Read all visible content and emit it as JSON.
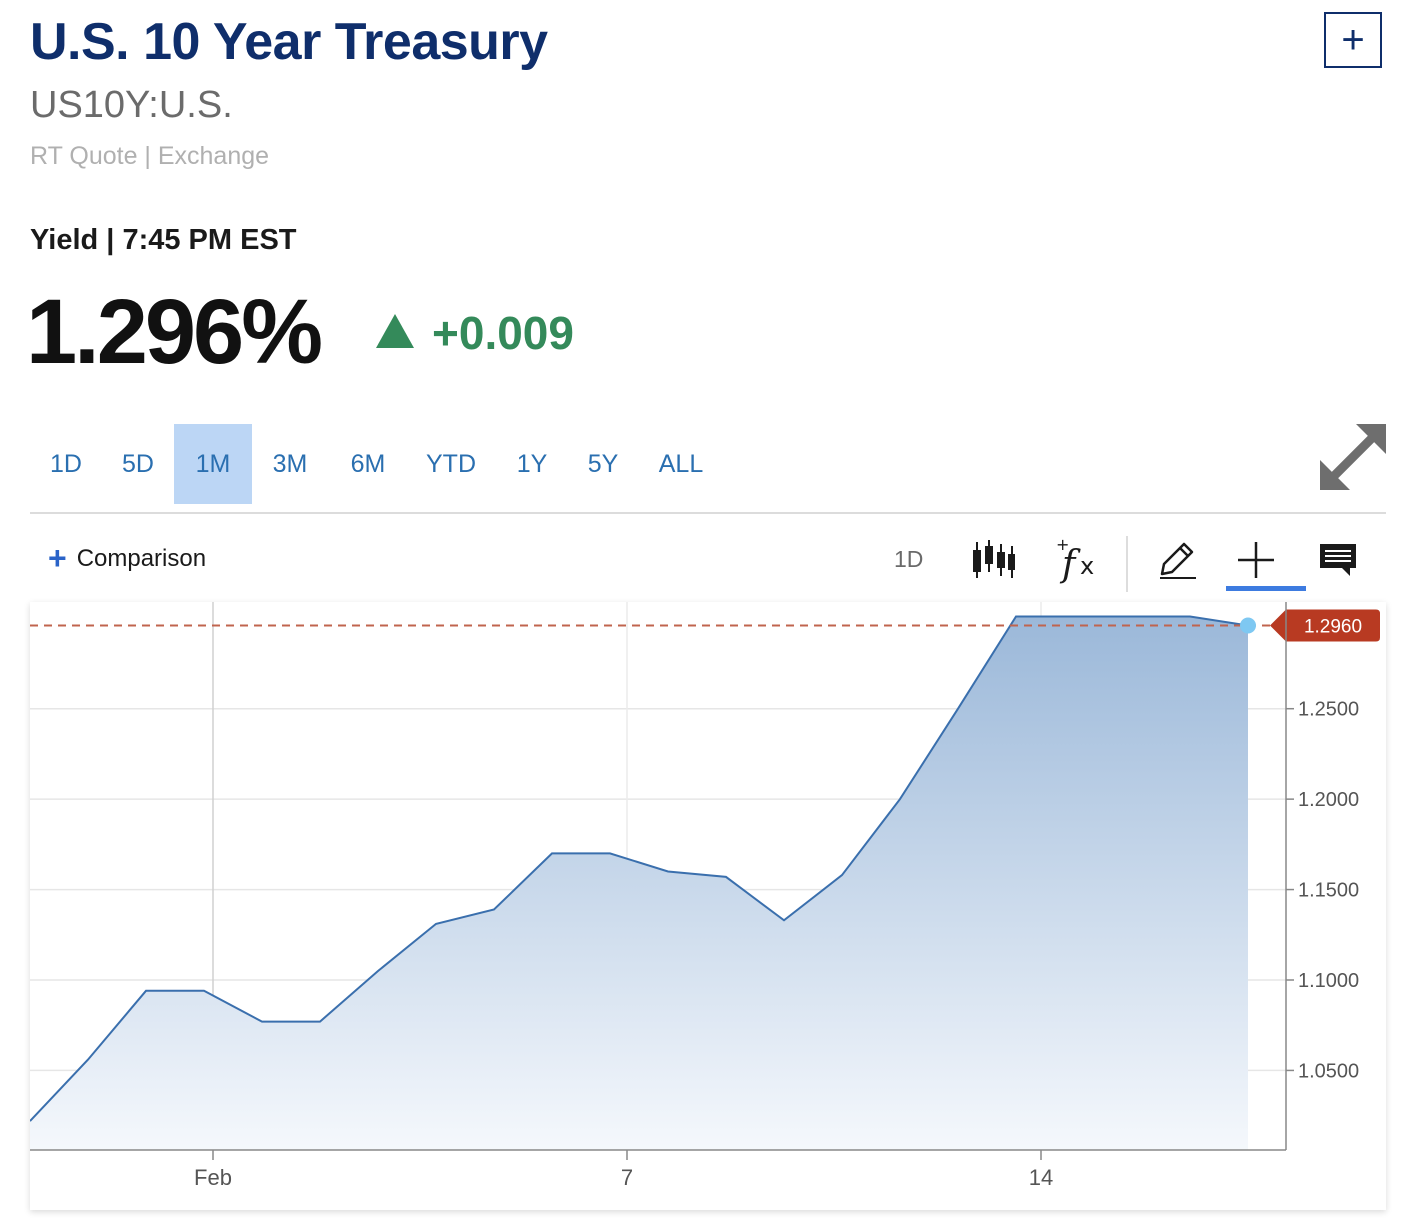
{
  "header": {
    "title": "U.S. 10 Year Treasury",
    "symbol": "US10Y:U.S.",
    "subline": "RT Quote | Exchange",
    "add_label": "+"
  },
  "quote": {
    "yield_line": "Yield | 7:45 PM EST",
    "price": "1.296%",
    "change": "+0.009",
    "change_color": "#348a5a"
  },
  "range_tabs": [
    {
      "label": "1D",
      "active": false
    },
    {
      "label": "5D",
      "active": false
    },
    {
      "label": "1M",
      "active": true
    },
    {
      "label": "3M",
      "active": false
    },
    {
      "label": "6M",
      "active": false
    },
    {
      "label": "YTD",
      "active": false
    },
    {
      "label": "1Y",
      "active": false
    },
    {
      "label": "5Y",
      "active": false
    },
    {
      "label": "ALL",
      "active": false
    }
  ],
  "toolbar": {
    "comparison_label": "Comparison",
    "interval_label": "1D",
    "icons": [
      "candlestick-icon",
      "indicators-fx-icon",
      "pencil-draw-icon",
      "crosshair-icon",
      "comment-icon"
    ]
  },
  "chart_data": {
    "type": "area",
    "x": [
      "Jan 27",
      "Jan 28",
      "Jan 29",
      "Jan 30",
      "Feb 1",
      "Feb 2",
      "Feb 3",
      "Feb 4",
      "Feb 5",
      "Feb 6",
      "Feb 7",
      "Feb 8",
      "Feb 9",
      "Feb 10",
      "Feb 11",
      "Feb 12",
      "Feb 13",
      "Feb 14",
      "Feb 15",
      "Feb 16",
      "Feb 17",
      "Feb 18"
    ],
    "y": [
      1.022,
      1.056,
      1.094,
      1.094,
      1.077,
      1.077,
      1.105,
      1.131,
      1.139,
      1.17,
      1.17,
      1.16,
      1.157,
      1.133,
      1.158,
      1.2,
      1.25,
      1.301,
      1.301,
      1.301,
      1.301,
      1.296
    ],
    "x_ticks": [
      "Feb",
      "7",
      "14"
    ],
    "y_ticks": [
      "1.0500",
      "1.1000",
      "1.1500",
      "1.2000",
      "1.2500"
    ],
    "ylim": [
      1.006,
      1.309
    ],
    "last_value_label": "1.2960",
    "last_value": 1.296,
    "colors": {
      "line": "#3a6fad",
      "fill_top": "#9bb8d9",
      "fill_bottom": "#f5f8fc",
      "last_marker": "#7ec8f2",
      "last_label_bg": "#b83a22",
      "ref_line": "#c0644e"
    }
  }
}
